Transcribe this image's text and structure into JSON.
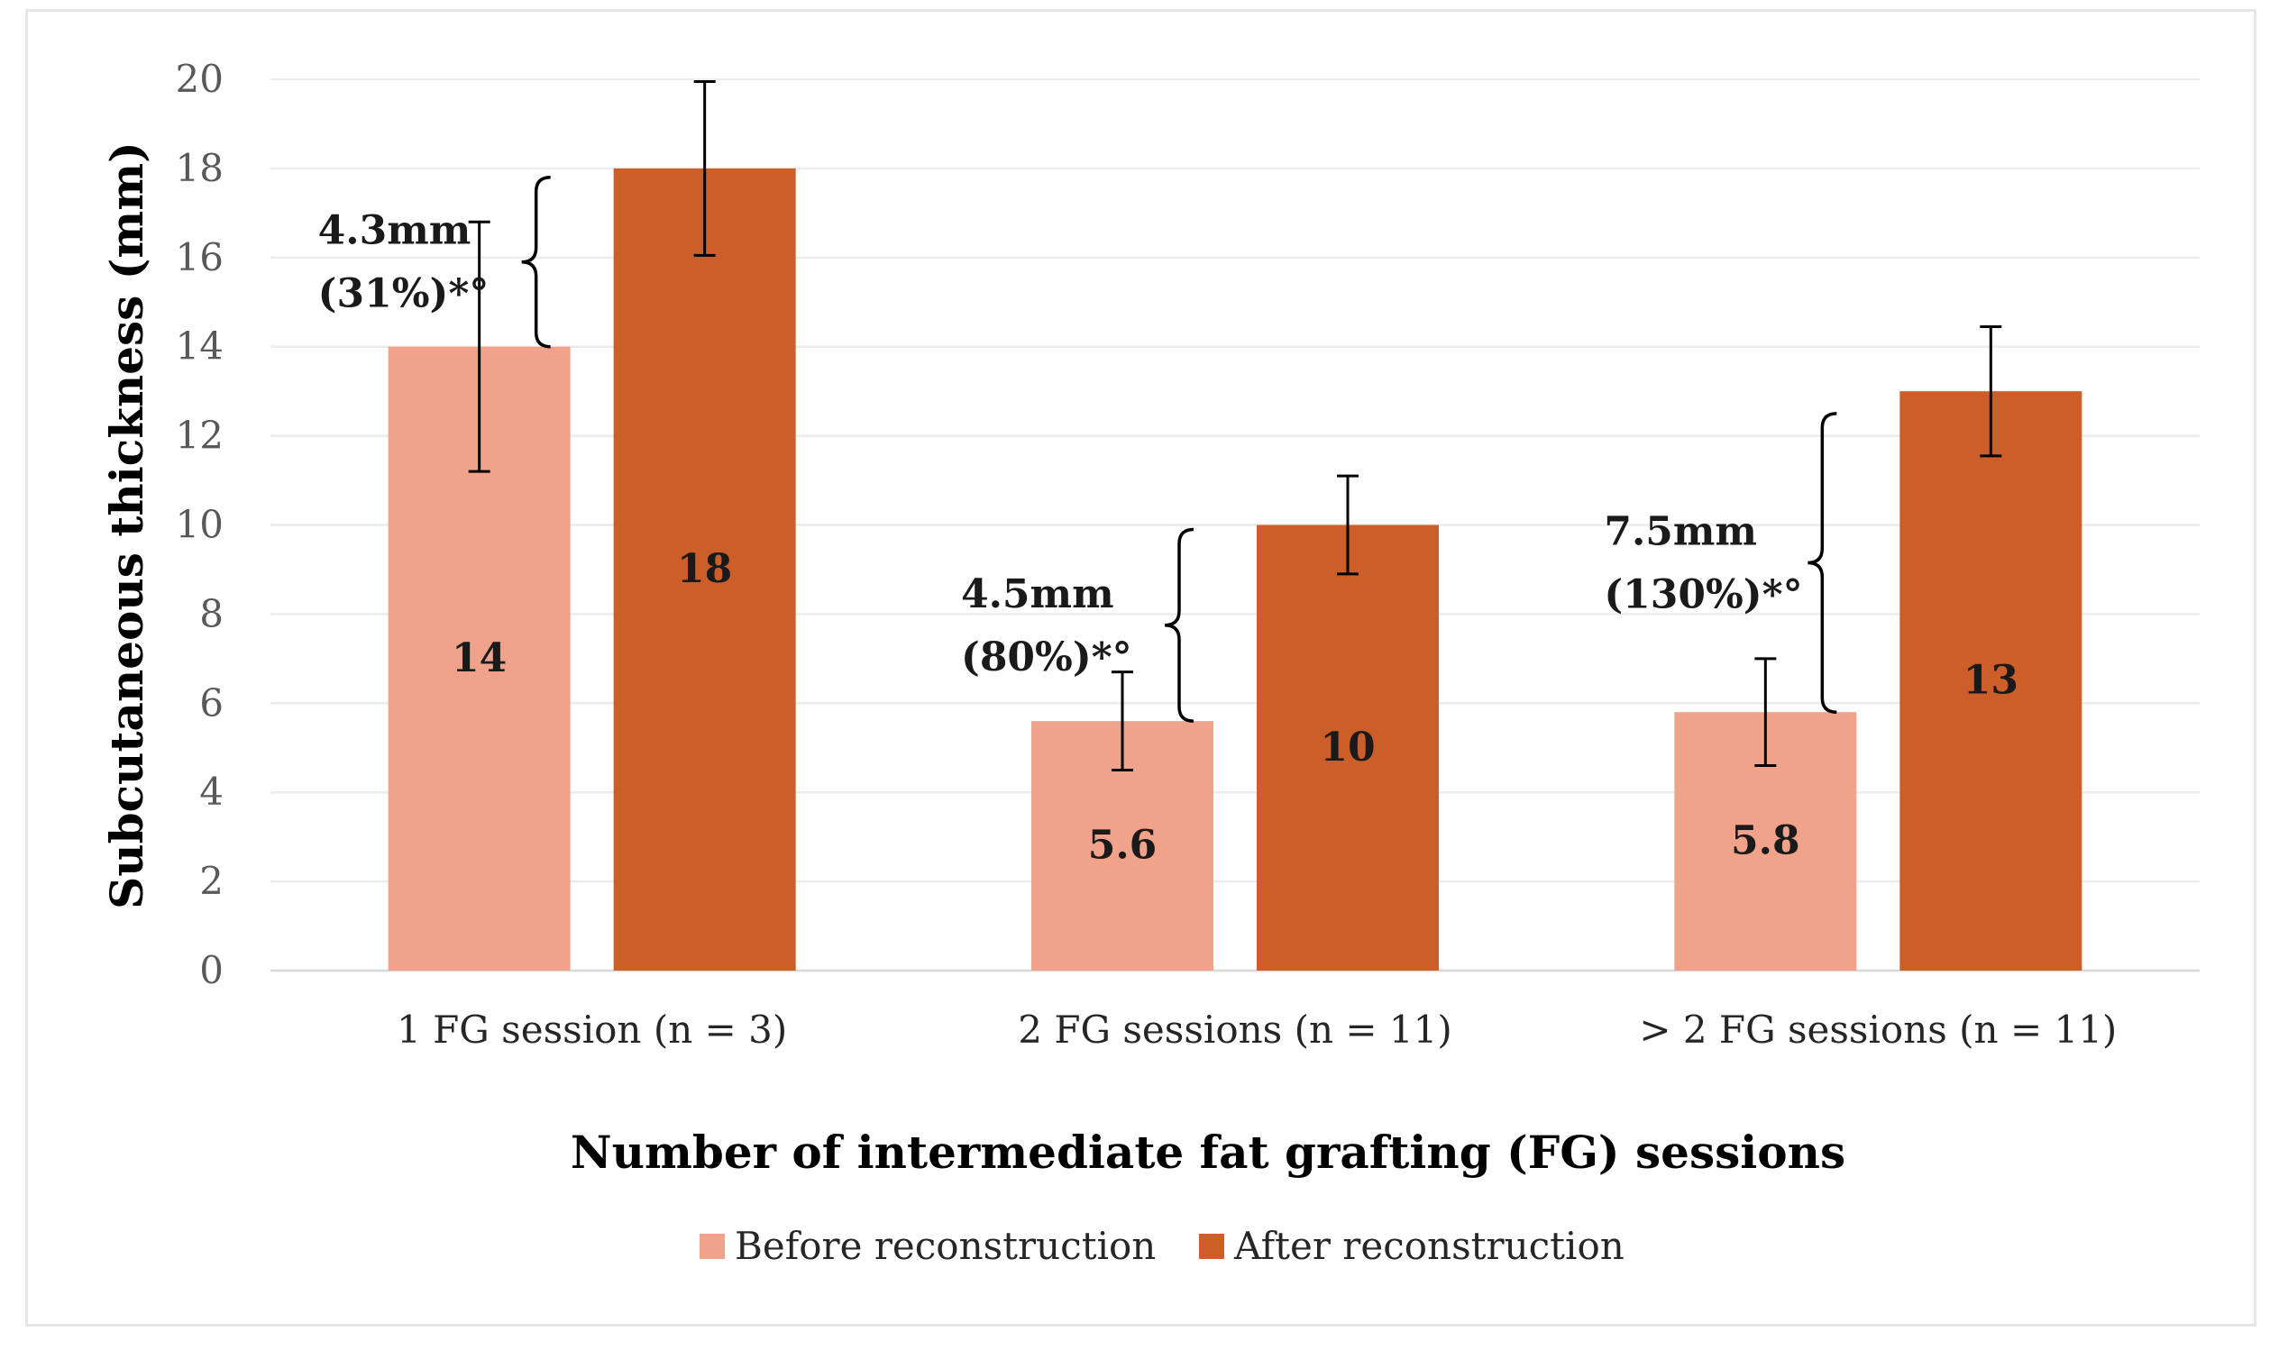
{
  "chart_data": {
    "type": "bar",
    "title": "",
    "xlabel": "Number of intermediate fat grafting (FG) sessions",
    "ylabel": "Subcutaneous thickness  (mm)",
    "ylim": [
      0,
      20
    ],
    "yticks": [
      0,
      2,
      4,
      6,
      8,
      10,
      12,
      14,
      16,
      18,
      20
    ],
    "grid": true,
    "legend_position": "bottom",
    "categories": [
      "1 FG session (n = 3)",
      "2 FG sessions (n = 11)",
      "> 2 FG sessions (n = 11)"
    ],
    "series": [
      {
        "name": "Before reconstruction",
        "color": "#f0a38a",
        "values": [
          14,
          5.6,
          5.8
        ],
        "value_labels": [
          "14",
          "5.6",
          "5.8"
        ],
        "error": [
          2.8,
          1.1,
          1.2
        ]
      },
      {
        "name": "After reconstruction",
        "color": "#cc5f29",
        "values": [
          18,
          10,
          13
        ],
        "value_labels": [
          "18",
          "10",
          "13"
        ],
        "error": [
          1.95,
          1.1,
          1.45
        ]
      }
    ],
    "annotations": [
      {
        "category": 0,
        "from": 14,
        "to": 17.8,
        "line1": "4.3mm",
        "line2": "(31%)*°"
      },
      {
        "category": 1,
        "from": 5.6,
        "to": 9.9,
        "line1": "4.5mm",
        "line2": "(80%)*°"
      },
      {
        "category": 2,
        "from": 5.8,
        "to": 12.5,
        "line1": "7.5mm",
        "line2": "(130%)*°"
      }
    ]
  }
}
